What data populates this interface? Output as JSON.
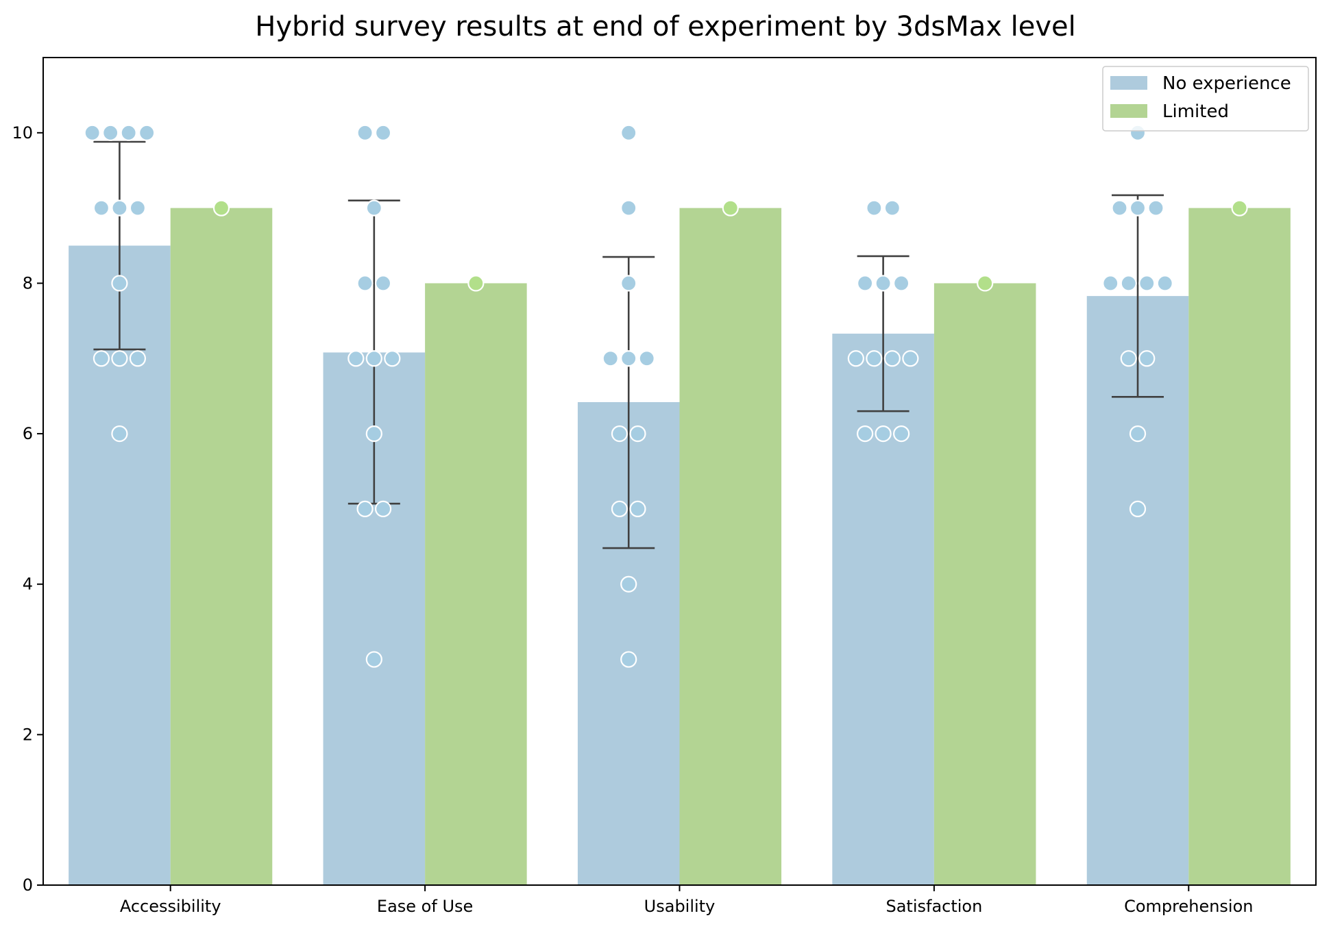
{
  "chart_data": {
    "type": "bar",
    "title": "Hybrid survey results at end of experiment by 3dsMax level",
    "xlabel": "",
    "ylabel": "",
    "categories": [
      "Accessibility",
      "Ease of Use",
      "Usability",
      "Satisfaction",
      "Comprehension"
    ],
    "ylim": [
      0,
      11
    ],
    "yticks": [
      0,
      2,
      4,
      6,
      8,
      10
    ],
    "grid": false,
    "legend_position": "top-right",
    "series": [
      {
        "name": "No experience",
        "color": "#aecbdd",
        "point_color": "#a6cde2",
        "values": [
          8.5,
          7.08,
          6.42,
          7.33,
          7.83
        ],
        "error": [
          [
            7.12,
            9.88
          ],
          [
            5.07,
            9.1
          ],
          [
            4.48,
            8.35
          ],
          [
            6.3,
            8.36
          ],
          [
            6.49,
            9.17
          ]
        ],
        "points": [
          [
            10,
            10,
            10,
            10,
            9,
            9,
            9,
            8,
            7,
            7,
            7,
            6
          ],
          [
            10,
            10,
            9,
            8,
            8,
            7,
            7,
            7,
            6,
            5,
            5,
            3
          ],
          [
            10,
            9,
            8,
            7,
            7,
            7,
            6,
            6,
            5,
            5,
            4,
            3
          ],
          [
            9,
            9,
            8,
            8,
            8,
            7,
            7,
            7,
            7,
            6,
            6,
            6
          ],
          [
            10,
            9,
            9,
            9,
            8,
            8,
            8,
            8,
            7,
            7,
            6,
            5
          ]
        ]
      },
      {
        "name": "Limited",
        "color": "#b3d493",
        "point_color": "#b2df8a",
        "values": [
          9,
          8,
          9,
          8,
          9
        ],
        "points": [
          [
            9
          ],
          [
            8
          ],
          [
            9
          ],
          [
            8
          ],
          [
            9
          ]
        ]
      }
    ]
  }
}
